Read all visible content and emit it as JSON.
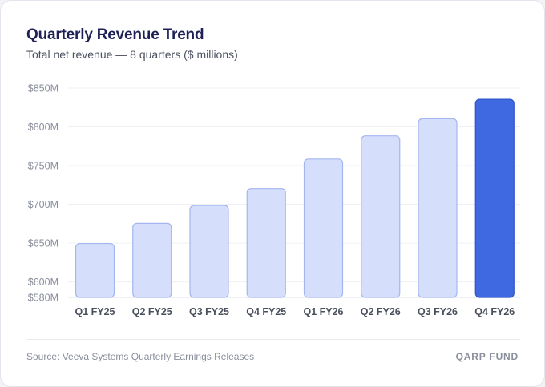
{
  "colors": {
    "bar_fill": "#d5defa",
    "bar_stroke": "#a4b6ef",
    "highlight_fill": "#3f69e0",
    "highlight_stroke": "#2e55c8",
    "grid": "#eef0f4",
    "tick_text": "#8a8f9c",
    "category_text": "#4a4f5c"
  },
  "footer": {
    "source": "Source: Veeva Systems Quarterly Earnings Releases",
    "brand": "QARP FUND"
  },
  "chart_data": {
    "type": "bar",
    "title": "Quarterly Revenue Trend",
    "subtitle": "Total net revenue — 8 quarters ($ millions)",
    "categories": [
      "Q1 FY25",
      "Q2 FY25",
      "Q3 FY25",
      "Q4 FY25",
      "Q1 FY26",
      "Q2 FY26",
      "Q3 FY26",
      "Q4 FY26"
    ],
    "values": [
      650,
      676,
      699,
      721,
      759,
      789,
      811,
      836
    ],
    "highlight_index": 7,
    "ylim": [
      580,
      850
    ],
    "yticks": [
      580,
      600,
      650,
      700,
      750,
      800,
      850
    ],
    "ytick_labels": [
      "$580M",
      "$600M",
      "$650M",
      "$700M",
      "$750M",
      "$800M",
      "$850M"
    ],
    "grid": true,
    "xlabel": "",
    "ylabel": ""
  }
}
